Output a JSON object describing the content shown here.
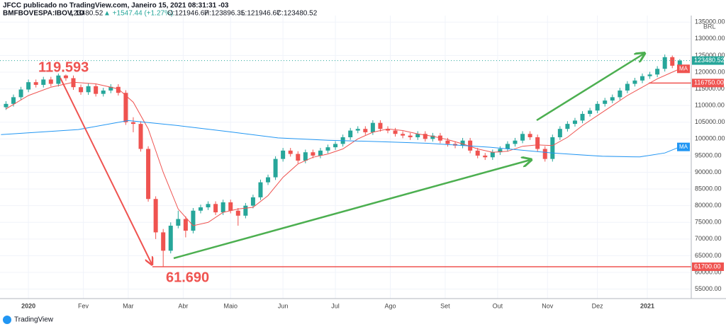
{
  "header": {
    "line1": "JFCC publicado no TradingView.com, Janeiro 15, 2021 08:31:31 -03",
    "symbol": "BMFBOVESPA:IBOV, 1D",
    "last": "123480.52",
    "change": "▲ +1547.44 (+1.27%)",
    "open": "O:121946.67",
    "high": "H:123896.35",
    "low": "L:121946.67",
    "close": "C:123480.52"
  },
  "footer": {
    "brand": "TradingView"
  },
  "chart_data": {
    "type": "candlestick",
    "currency": "BRL",
    "xlim": [
      -11.4,
      265.6
    ],
    "ylim": [
      52160,
      136960
    ],
    "xticks": [
      {
        "value": 0,
        "label": "2020"
      },
      {
        "value": 22,
        "label": "Fev"
      },
      {
        "value": 40,
        "label": "Mar"
      },
      {
        "value": 62,
        "label": "Abr"
      },
      {
        "value": 81,
        "label": "Maio"
      },
      {
        "value": 102,
        "label": "Jun"
      },
      {
        "value": 123,
        "label": "Jul"
      },
      {
        "value": 145,
        "label": "Ago"
      },
      {
        "value": 167,
        "label": "Set"
      },
      {
        "value": 188,
        "label": "Out"
      },
      {
        "value": 208,
        "label": "Nov"
      },
      {
        "value": 228,
        "label": "Dez"
      },
      {
        "value": 248,
        "label": "2021"
      }
    ],
    "yticks": [
      {
        "value": 55000,
        "label": "55000.00"
      },
      {
        "value": 60000,
        "label": "60000.00"
      },
      {
        "value": 65000,
        "label": "65000.00"
      },
      {
        "value": 70000,
        "label": "70000.00"
      },
      {
        "value": 75000,
        "label": "75000.00"
      },
      {
        "value": 80000,
        "label": "80000.00"
      },
      {
        "value": 85000,
        "label": "85000.00"
      },
      {
        "value": 90000,
        "label": "90000.00"
      },
      {
        "value": 95000,
        "label": "95000.00"
      },
      {
        "value": 100000,
        "label": "100000.00"
      },
      {
        "value": 105000,
        "label": "105000.00"
      },
      {
        "value": 110000,
        "label": "110000.00"
      },
      {
        "value": 115000,
        "label": "115000.00"
      },
      {
        "value": 120000,
        "label": "120000.00"
      },
      {
        "value": 125000,
        "label": "125000.00"
      },
      {
        "value": 130000,
        "label": "130000.00"
      },
      {
        "value": 135000,
        "label": "135000.00"
      }
    ],
    "grid": true,
    "up_color": "#26a69a",
    "down_color": "#ef5350",
    "x": [
      -9,
      -6,
      -3,
      0,
      3,
      6,
      9,
      12,
      15,
      18,
      21,
      24,
      27,
      30,
      33,
      36,
      39,
      42,
      45,
      48,
      51,
      54,
      57,
      60,
      63,
      66,
      69,
      72,
      75,
      78,
      81,
      84,
      87,
      90,
      93,
      96,
      99,
      102,
      105,
      108,
      111,
      114,
      117,
      120,
      123,
      126,
      129,
      132,
      135,
      138,
      141,
      144,
      147,
      150,
      153,
      156,
      159,
      162,
      165,
      168,
      171,
      174,
      177,
      180,
      183,
      186,
      189,
      192,
      195,
      198,
      201,
      204,
      207,
      210,
      213,
      216,
      219,
      222,
      225,
      228,
      231,
      234,
      237,
      240,
      243,
      246,
      249,
      252,
      255,
      258,
      261
    ],
    "open": [
      109500,
      110500,
      112500,
      114800,
      117000,
      116200,
      117800,
      116500,
      119000,
      118200,
      115500,
      114000,
      115800,
      113500,
      114500,
      115600,
      113800,
      105000,
      104500,
      97000,
      82000,
      72000,
      66500,
      74000,
      76000,
      72500,
      78500,
      79500,
      80500,
      78000,
      81000,
      78500,
      77000,
      80000,
      82500,
      87000,
      88500,
      94000,
      96500,
      95500,
      93500,
      96000,
      95000,
      96500,
      97500,
      98500,
      100500,
      102500,
      103000,
      102000,
      104800,
      103000,
      102500,
      101500,
      101000,
      100500,
      101500,
      100000,
      101000,
      99500,
      98500,
      98000,
      99500,
      96500,
      95000,
      94500,
      96000,
      97000,
      98500,
      99500,
      101500,
      100500,
      97000,
      94000,
      100500,
      103000,
      104500,
      105500,
      107500,
      108500,
      110500,
      111500,
      112500,
      114500,
      116500,
      117500,
      118800,
      119300,
      121000,
      124500,
      121946.67
    ],
    "high": [
      111300,
      113300,
      115600,
      117800,
      117800,
      118600,
      118600,
      119593,
      119300,
      119000,
      116300,
      116600,
      116600,
      115300,
      116400,
      116400,
      114600,
      106500,
      105300,
      97800,
      82800,
      73000,
      75000,
      78500,
      76800,
      79300,
      80300,
      81300,
      81300,
      81800,
      81800,
      79300,
      80800,
      83300,
      87800,
      89300,
      94800,
      97300,
      97300,
      96300,
      96800,
      96800,
      97300,
      98300,
      99300,
      101300,
      103300,
      103800,
      103800,
      105600,
      105600,
      103800,
      103300,
      102300,
      101800,
      102300,
      102300,
      101800,
      101800,
      100300,
      99300,
      100300,
      100300,
      97300,
      95800,
      96800,
      97800,
      99300,
      100300,
      102300,
      102300,
      101300,
      97800,
      101300,
      103800,
      105300,
      106300,
      108300,
      109300,
      111300,
      112300,
      113300,
      115300,
      117300,
      118300,
      119600,
      120100,
      121800,
      125300,
      125000,
      123896.35
    ],
    "low": [
      108700,
      109700,
      111700,
      114000,
      115400,
      115400,
      115700,
      115700,
      117400,
      114700,
      113200,
      113200,
      112700,
      112700,
      113700,
      113000,
      104200,
      102000,
      96200,
      81200,
      70000,
      61690,
      65700,
      73200,
      70500,
      71700,
      77700,
      78700,
      77200,
      77200,
      77700,
      74000,
      76200,
      79200,
      81700,
      86200,
      87700,
      93200,
      94700,
      92700,
      92700,
      94200,
      94200,
      95700,
      96700,
      97700,
      99700,
      101700,
      101200,
      101200,
      102200,
      101700,
      100700,
      100200,
      99700,
      99700,
      99200,
      99200,
      98700,
      97700,
      97200,
      97200,
      95700,
      94200,
      93700,
      93700,
      95200,
      96200,
      97700,
      98700,
      99700,
      96200,
      93200,
      93200,
      99700,
      102200,
      103700,
      104700,
      106700,
      107700,
      109700,
      110700,
      111700,
      113700,
      115700,
      116700,
      118000,
      118500,
      120200,
      121200,
      121946.67
    ],
    "close": [
      110500,
      112500,
      114800,
      117000,
      116200,
      117800,
      116500,
      119000,
      118200,
      115500,
      114000,
      115800,
      113500,
      114500,
      115600,
      113800,
      105000,
      104500,
      97000,
      82000,
      72000,
      66500,
      74000,
      76000,
      72500,
      78500,
      79500,
      80500,
      78000,
      81000,
      78500,
      77000,
      80000,
      82500,
      87000,
      88500,
      94000,
      96500,
      95500,
      93500,
      96000,
      95000,
      96500,
      97500,
      98500,
      100500,
      102500,
      103000,
      102000,
      104800,
      103000,
      102500,
      101500,
      101000,
      100500,
      101500,
      100000,
      101000,
      99500,
      98500,
      98000,
      99500,
      96500,
      95000,
      94500,
      96000,
      97000,
      98500,
      99500,
      101500,
      100500,
      97000,
      94000,
      100500,
      103000,
      104500,
      105500,
      107500,
      108500,
      110500,
      111500,
      112500,
      114500,
      116500,
      117500,
      118800,
      119300,
      121000,
      124500,
      121933.08,
      123480.52
    ],
    "last_price": {
      "value": 123480.52,
      "label": "123480.52"
    },
    "series": [
      {
        "name": "MA",
        "color": "#ef5350",
        "x": [
          -9,
          0,
          9,
          18,
          27,
          36,
          42,
          48,
          54,
          60,
          66,
          72,
          78,
          84,
          90,
          96,
          102,
          108,
          114,
          120,
          126,
          132,
          138,
          144,
          150,
          156,
          162,
          168,
          174,
          180,
          186,
          192,
          198,
          204,
          210,
          216,
          222,
          228,
          234,
          240,
          246,
          252,
          258,
          261
        ],
        "values": [
          109000,
          113000,
          115500,
          117000,
          116500,
          115000,
          111000,
          103000,
          90000,
          79000,
          74000,
          75000,
          78000,
          79000,
          79500,
          83000,
          88500,
          92500,
          94500,
          95500,
          97000,
          100000,
          102000,
          103000,
          102500,
          101500,
          100800,
          99800,
          98500,
          97000,
          96000,
          96300,
          97800,
          98200,
          98000,
          100500,
          104000,
          107000,
          110000,
          113000,
          115500,
          118000,
          120000,
          121000
        ]
      },
      {
        "name": "MA",
        "color": "#2196f3",
        "x": [
          -11,
          20,
          40,
          60,
          80,
          100,
          120,
          140,
          160,
          185,
          210,
          230,
          245,
          255,
          261
        ],
        "values": [
          101300,
          102800,
          105500,
          104000,
          102200,
          100300,
          99600,
          99200,
          98700,
          97500,
          95800,
          94800,
          94600,
          95800,
          97600
        ]
      }
    ],
    "levels": [
      {
        "value": 61700,
        "label": "61700.00"
      },
      {
        "value": 116750,
        "label": "116750.00"
      }
    ],
    "annotations": [
      "119.593",
      "61.690"
    ]
  }
}
